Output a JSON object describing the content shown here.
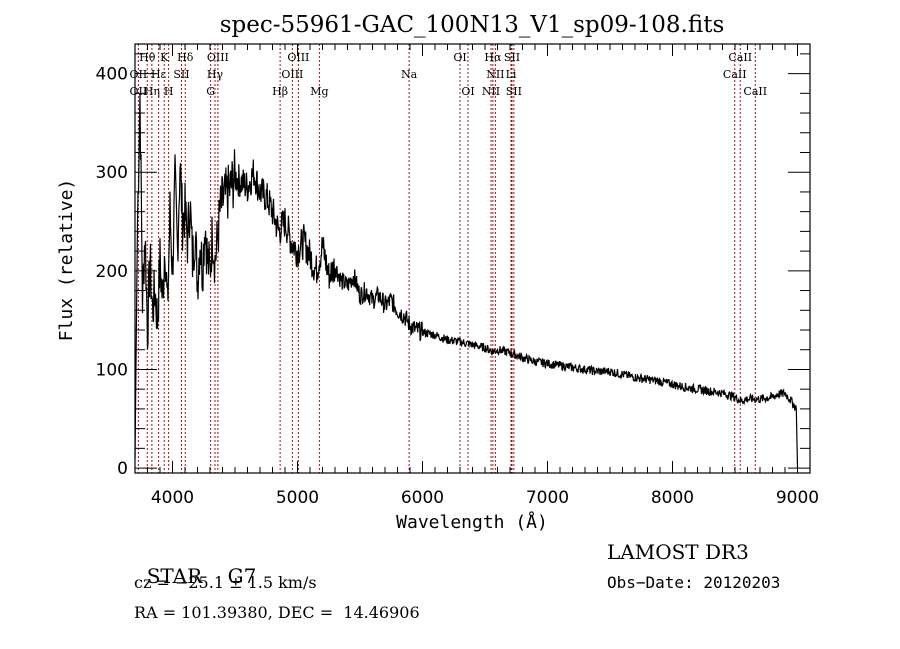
{
  "chart_data": {
    "type": "line",
    "title": "spec-55961-GAC_100N13_V1_sp09-108.fits",
    "xlabel": "Wavelength (Å)",
    "ylabel": "Flux (relative)",
    "xlim": [
      3700,
      9100
    ],
    "ylim": [
      -5,
      430
    ],
    "x_ticks": [
      4000,
      5000,
      6000,
      7000,
      8000,
      9000
    ],
    "x_tick_labels": [
      "4000",
      "5000",
      "6000",
      "7000",
      "8000",
      "9000"
    ],
    "y_ticks": [
      0,
      100,
      200,
      300,
      400
    ],
    "y_tick_labels": [
      "0",
      "100",
      "200",
      "300",
      "400"
    ],
    "grid": false,
    "legend": "none",
    "series": [
      {
        "name": "spectrum",
        "color": "#000000",
        "x": [
          3700,
          3720,
          3740,
          3760,
          3780,
          3800,
          3820,
          3840,
          3860,
          3880,
          3900,
          3920,
          3940,
          3960,
          3980,
          4000,
          4020,
          4040,
          4060,
          4080,
          4100,
          4120,
          4140,
          4160,
          4180,
          4200,
          4220,
          4240,
          4260,
          4280,
          4300,
          4320,
          4340,
          4360,
          4380,
          4400,
          4450,
          4500,
          4550,
          4600,
          4650,
          4700,
          4750,
          4800,
          4850,
          4900,
          4950,
          5000,
          5050,
          5100,
          5150,
          5200,
          5250,
          5300,
          5350,
          5400,
          5450,
          5500,
          5550,
          5600,
          5650,
          5700,
          5750,
          5800,
          5850,
          5900,
          5950,
          6000,
          6100,
          6200,
          6300,
          6400,
          6500,
          6563,
          6600,
          6700,
          6800,
          6900,
          7000,
          7100,
          7200,
          7300,
          7400,
          7500,
          7600,
          7700,
          7800,
          7900,
          8000,
          8100,
          8200,
          8300,
          8400,
          8500,
          8550,
          8600,
          8700,
          8800,
          8850,
          8900,
          8950,
          8990,
          9000
        ],
        "y": [
          10,
          250,
          380,
          170,
          240,
          140,
          210,
          160,
          180,
          150,
          210,
          170,
          230,
          160,
          260,
          200,
          290,
          220,
          310,
          250,
          260,
          230,
          270,
          210,
          240,
          190,
          230,
          200,
          250,
          210,
          200,
          240,
          210,
          230,
          260,
          270,
          280,
          295,
          290,
          285,
          300,
          280,
          275,
          260,
          240,
          250,
          230,
          220,
          230,
          215,
          200,
          225,
          195,
          205,
          190,
          185,
          195,
          175,
          180,
          170,
          175,
          165,
          170,
          160,
          155,
          145,
          140,
          138,
          135,
          130,
          128,
          125,
          122,
          118,
          120,
          117,
          112,
          108,
          106,
          104,
          102,
          100,
          98,
          98,
          95,
          92,
          90,
          88,
          85,
          82,
          80,
          78,
          76,
          72,
          68,
          70,
          70,
          72,
          75,
          76,
          68,
          60,
          0
        ]
      }
    ],
    "line_markers": [
      {
        "label": "Hθ",
        "x": 3798,
        "row": 0
      },
      {
        "label": "K",
        "x": 3934,
        "row": 0
      },
      {
        "label": "Hδ",
        "x": 4102,
        "row": 0
      },
      {
        "label": "OIII",
        "x": 4363,
        "row": 0
      },
      {
        "label": "OIII",
        "x": 5007,
        "row": 0
      },
      {
        "label": "OI",
        "x": 6300,
        "row": 0
      },
      {
        "label": "Hα",
        "x": 6563,
        "row": 0
      },
      {
        "label": "SII",
        "x": 6716,
        "row": 0
      },
      {
        "label": "CaII",
        "x": 8542,
        "row": 0
      },
      {
        "label": "OII",
        "x": 3727,
        "row": 1
      },
      {
        "label": "Hε",
        "x": 3889,
        "row": 1
      },
      {
        "label": "SII",
        "x": 4072,
        "row": 1
      },
      {
        "label": "Hγ",
        "x": 4340,
        "row": 1
      },
      {
        "label": "OIII",
        "x": 4959,
        "row": 1
      },
      {
        "label": "Na",
        "x": 5893,
        "row": 1
      },
      {
        "label": "NII",
        "x": 6583,
        "row": 1
      },
      {
        "label": "Li",
        "x": 6708,
        "row": 1
      },
      {
        "label": "CaII",
        "x": 8498,
        "row": 1
      },
      {
        "label": "OII",
        "x": 3727,
        "row": 2
      },
      {
        "label": "Hη",
        "x": 3835,
        "row": 2
      },
      {
        "label": "H",
        "x": 3969,
        "row": 2
      },
      {
        "label": "G",
        "x": 4305,
        "row": 2
      },
      {
        "label": "Hβ",
        "x": 4861,
        "row": 2
      },
      {
        "label": "Mg",
        "x": 5175,
        "row": 2
      },
      {
        "label": "OI",
        "x": 6364,
        "row": 2
      },
      {
        "label": "NII",
        "x": 6548,
        "row": 2
      },
      {
        "label": "SII",
        "x": 6731,
        "row": 2
      },
      {
        "label": "CaII",
        "x": 8662,
        "row": 2
      }
    ],
    "marker_color": "#a01010"
  },
  "info": {
    "class_label": "STAR",
    "subclass": "G7",
    "redshift": "cz = −25.1 ± 1.5 km/s",
    "coords": "RA = 101.39380, DEC =  14.46906",
    "survey": "LAMOST DR3",
    "obs_date": "Obs−Date: 20120203"
  }
}
